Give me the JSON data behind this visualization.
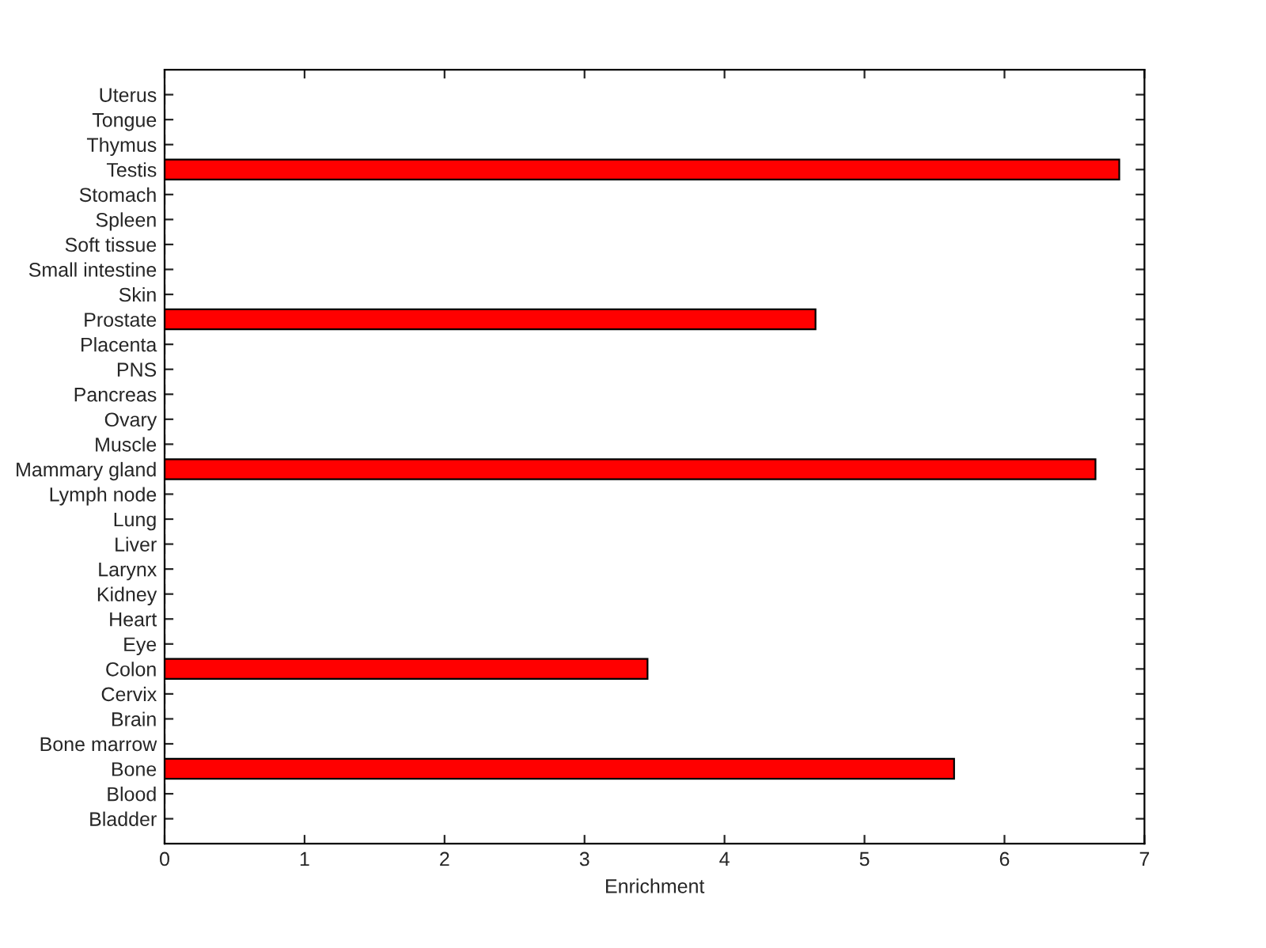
{
  "chart_data": {
    "type": "bar",
    "orientation": "horizontal",
    "xlabel": "Enrichment",
    "categories": [
      "Uterus",
      "Tongue",
      "Thymus",
      "Testis",
      "Stomach",
      "Spleen",
      "Soft tissue",
      "Small intestine",
      "Skin",
      "Prostate",
      "Placenta",
      "PNS",
      "Pancreas",
      "Ovary",
      "Muscle",
      "Mammary gland",
      "Lymph node",
      "Lung",
      "Liver",
      "Larynx",
      "Kidney",
      "Heart",
      "Eye",
      "Colon",
      "Cervix",
      "Brain",
      "Bone marrow",
      "Bone",
      "Blood",
      "Bladder"
    ],
    "values": [
      0,
      0,
      0,
      6.82,
      0,
      0,
      0,
      0,
      0,
      4.65,
      0,
      0,
      0,
      0,
      0,
      6.65,
      0,
      0,
      0,
      0,
      0,
      0,
      0,
      3.45,
      0,
      0,
      0,
      5.64,
      0,
      0
    ],
    "color": "#ff0000",
    "xlim": [
      0,
      7
    ],
    "xticks": [
      0,
      1,
      2,
      3,
      4,
      5,
      6,
      7
    ],
    "grid": false,
    "legend": false
  }
}
